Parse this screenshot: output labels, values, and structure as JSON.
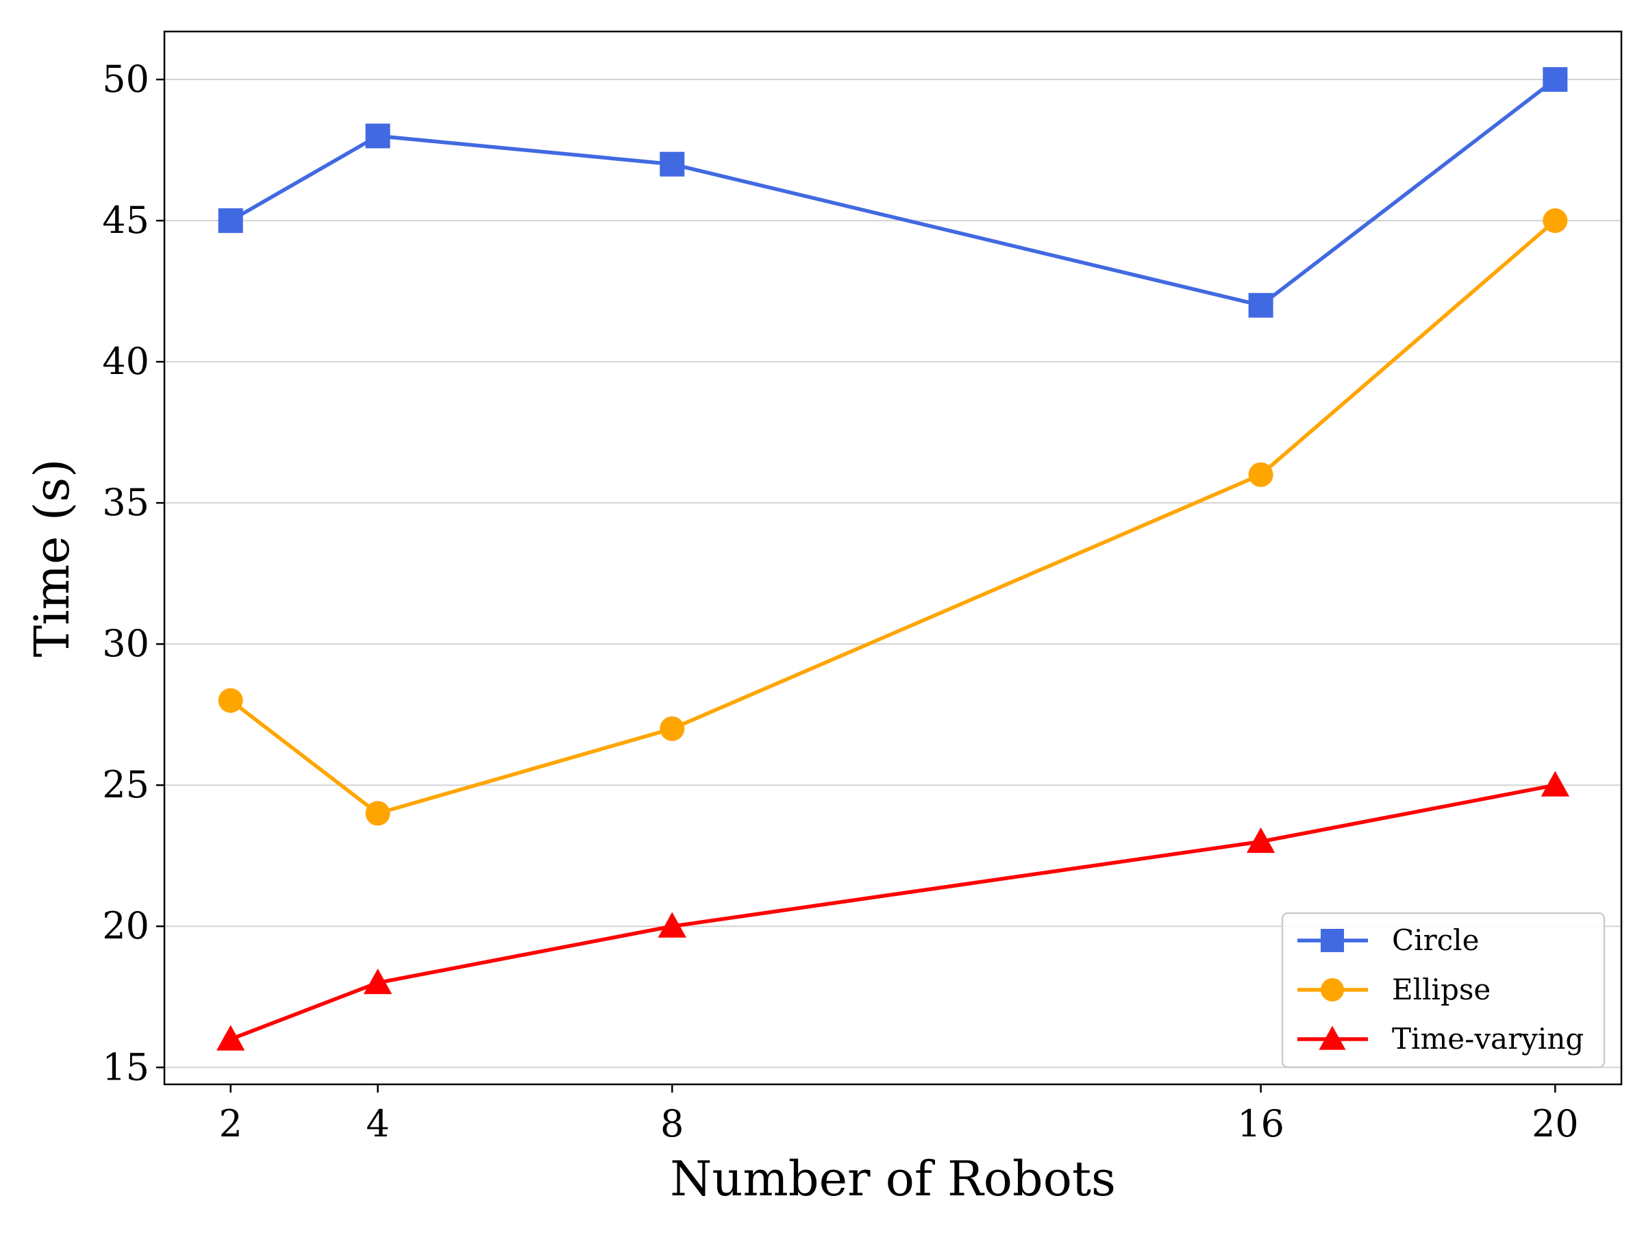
{
  "chart_data": {
    "type": "line",
    "title": "",
    "xlabel": "Number of Robots",
    "ylabel": "Time (s)",
    "x": [
      2,
      4,
      8,
      16,
      20
    ],
    "xticks": [
      2,
      4,
      8,
      16,
      20
    ],
    "yticks": [
      15,
      20,
      25,
      30,
      35,
      40,
      45,
      50
    ],
    "xlim": [
      1.1,
      20.9
    ],
    "ylim": [
      14.4,
      51.7
    ],
    "grid": "horizontal",
    "legend_position": "lower-right",
    "series": [
      {
        "name": "Circle",
        "values": [
          45,
          48,
          47,
          42,
          50
        ],
        "color": "#4169e1",
        "marker": "square"
      },
      {
        "name": "Ellipse",
        "values": [
          28,
          24,
          27,
          36,
          45
        ],
        "color": "#ffa500",
        "marker": "circle"
      },
      {
        "name": "Time-varying",
        "values": [
          16,
          18,
          20,
          23,
          25
        ],
        "color": "#ff0000",
        "marker": "triangle"
      }
    ]
  }
}
